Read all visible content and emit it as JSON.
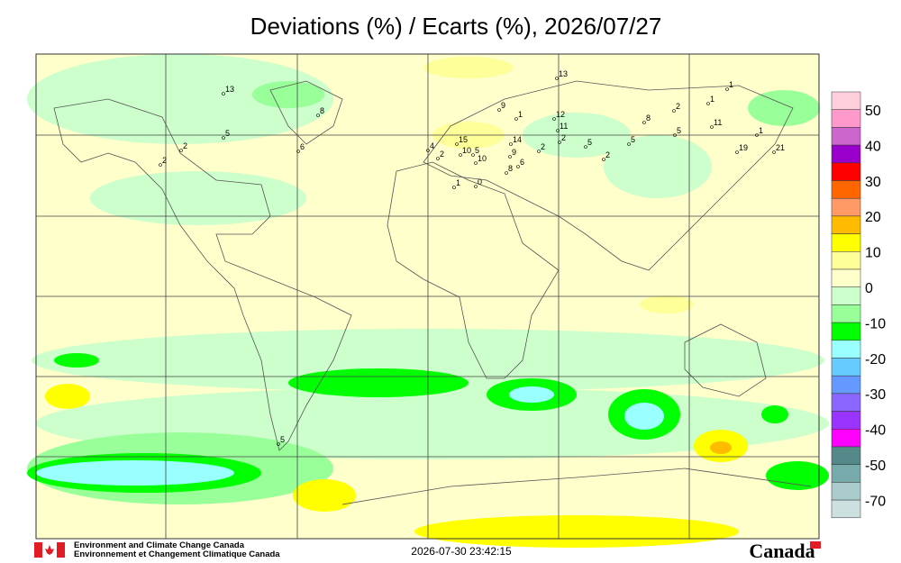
{
  "header": {
    "title": "Deviations (%) / Ecarts (%), 2026/07/27"
  },
  "legend": {
    "labels": [
      "50",
      "40",
      "30",
      "20",
      "10",
      "0",
      "-10",
      "-20",
      "-30",
      "-40",
      "-50",
      "-70"
    ],
    "colors": [
      "#ffd0dc",
      "#ff99cc",
      "#cc66cc",
      "#9900cc",
      "#ff0000",
      "#ff6600",
      "#ff9966",
      "#ffbb00",
      "#ffff00",
      "#ffff99",
      "#ffffcc",
      "#ccffcc",
      "#99ff99",
      "#00ff00",
      "#99ffff",
      "#66ccff",
      "#6699ff",
      "#8866ff",
      "#9933ff",
      "#ff00ff",
      "#558888",
      "#77aaaa",
      "#aacccc",
      "#cce0e0"
    ]
  },
  "stations": [
    "13",
    "8",
    "5",
    "2",
    "2",
    "6",
    "13",
    "9",
    "1",
    "12",
    "11",
    "8",
    "2",
    "1",
    "1",
    "5",
    "11",
    "1",
    "19",
    "21",
    "14",
    "15",
    "2",
    "2",
    "5",
    "5",
    "2",
    "4",
    "2",
    "10",
    "5",
    "10",
    "6",
    "9",
    "1",
    "0",
    "8",
    "5"
  ],
  "footer": {
    "agency_en": "Environment and Climate Change Canada",
    "agency_fr": "Environnement et Changement Climatique Canada",
    "timestamp": "2026-07-30 23:42:15",
    "wordmark": "Canada"
  }
}
